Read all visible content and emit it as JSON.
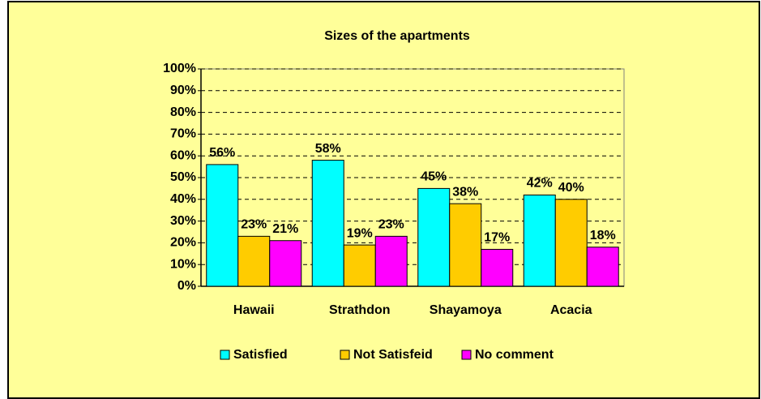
{
  "chart_data": {
    "type": "bar",
    "title": "Sizes of the apartments",
    "categories": [
      "Hawaii",
      "Strathdon",
      "Shayamoya",
      "Acacia"
    ],
    "series": [
      {
        "name": "Satisfied",
        "color": "#00FFFF",
        "values": [
          56,
          58,
          45,
          42
        ],
        "value_labels": [
          "56%",
          "58%",
          "45%",
          "42%"
        ]
      },
      {
        "name": "Not Satisfeid",
        "color": "#FFCC00",
        "values": [
          23,
          19,
          38,
          40
        ],
        "value_labels": [
          "23%",
          "19%",
          "38%",
          "40%"
        ]
      },
      {
        "name": "No comment",
        "color": "#FF00FF",
        "values": [
          21,
          23,
          17,
          18
        ],
        "value_labels": [
          "21%",
          "23%",
          "17%",
          "18%"
        ]
      }
    ],
    "ylim": [
      0,
      100
    ],
    "yticks": [
      {
        "value": 0,
        "label": "0%"
      },
      {
        "value": 10,
        "label": "10%"
      },
      {
        "value": 20,
        "label": "20%"
      },
      {
        "value": 30,
        "label": "30%"
      },
      {
        "value": 40,
        "label": "40%"
      },
      {
        "value": 50,
        "label": "50%"
      },
      {
        "value": 60,
        "label": "60%"
      },
      {
        "value": 70,
        "label": "70%"
      },
      {
        "value": 80,
        "label": "80%"
      },
      {
        "value": 90,
        "label": "90%"
      },
      {
        "value": 100,
        "label": "100%"
      }
    ],
    "grid": true,
    "legend": "bottom"
  }
}
